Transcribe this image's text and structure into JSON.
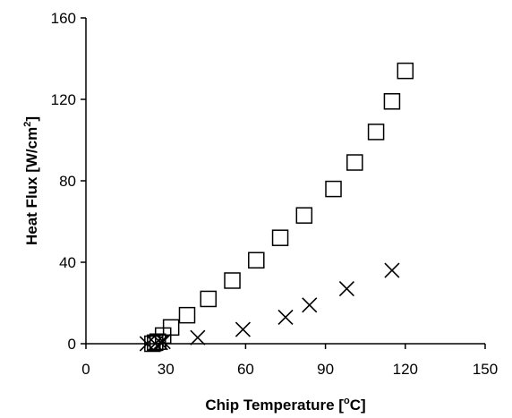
{
  "chart_data": {
    "type": "scatter",
    "title": "",
    "xlabel": {
      "prefix": "Chip Temperature [",
      "sup": "o",
      "suffix": "C]"
    },
    "ylabel": {
      "prefix": "Heat Flux [W/cm",
      "sup": "2",
      "suffix": "]"
    },
    "xlim": [
      0,
      150
    ],
    "ylim": [
      0,
      160
    ],
    "xticks": [
      0,
      30,
      60,
      90,
      120,
      150
    ],
    "yticks": [
      0,
      40,
      80,
      120,
      160
    ],
    "grid": false,
    "legend": "none",
    "series": [
      {
        "marker": "square",
        "color": "#000000",
        "points": [
          [
            25,
            0
          ],
          [
            26,
            0.5
          ],
          [
            27,
            1
          ],
          [
            29,
            4
          ],
          [
            32,
            8
          ],
          [
            38,
            14
          ],
          [
            46,
            22
          ],
          [
            55,
            31
          ],
          [
            64,
            41
          ],
          [
            73,
            52
          ],
          [
            82,
            63
          ],
          [
            93,
            76
          ],
          [
            101,
            89
          ],
          [
            109,
            104
          ],
          [
            115,
            119
          ],
          [
            120,
            134
          ]
        ]
      },
      {
        "marker": "x",
        "color": "#000000",
        "points": [
          [
            23,
            0
          ],
          [
            26,
            0
          ],
          [
            28,
            0.5
          ],
          [
            29,
            1
          ],
          [
            42,
            3
          ],
          [
            59,
            7
          ],
          [
            75,
            13
          ],
          [
            84,
            19
          ],
          [
            98,
            27
          ],
          [
            115,
            36
          ]
        ]
      }
    ]
  }
}
